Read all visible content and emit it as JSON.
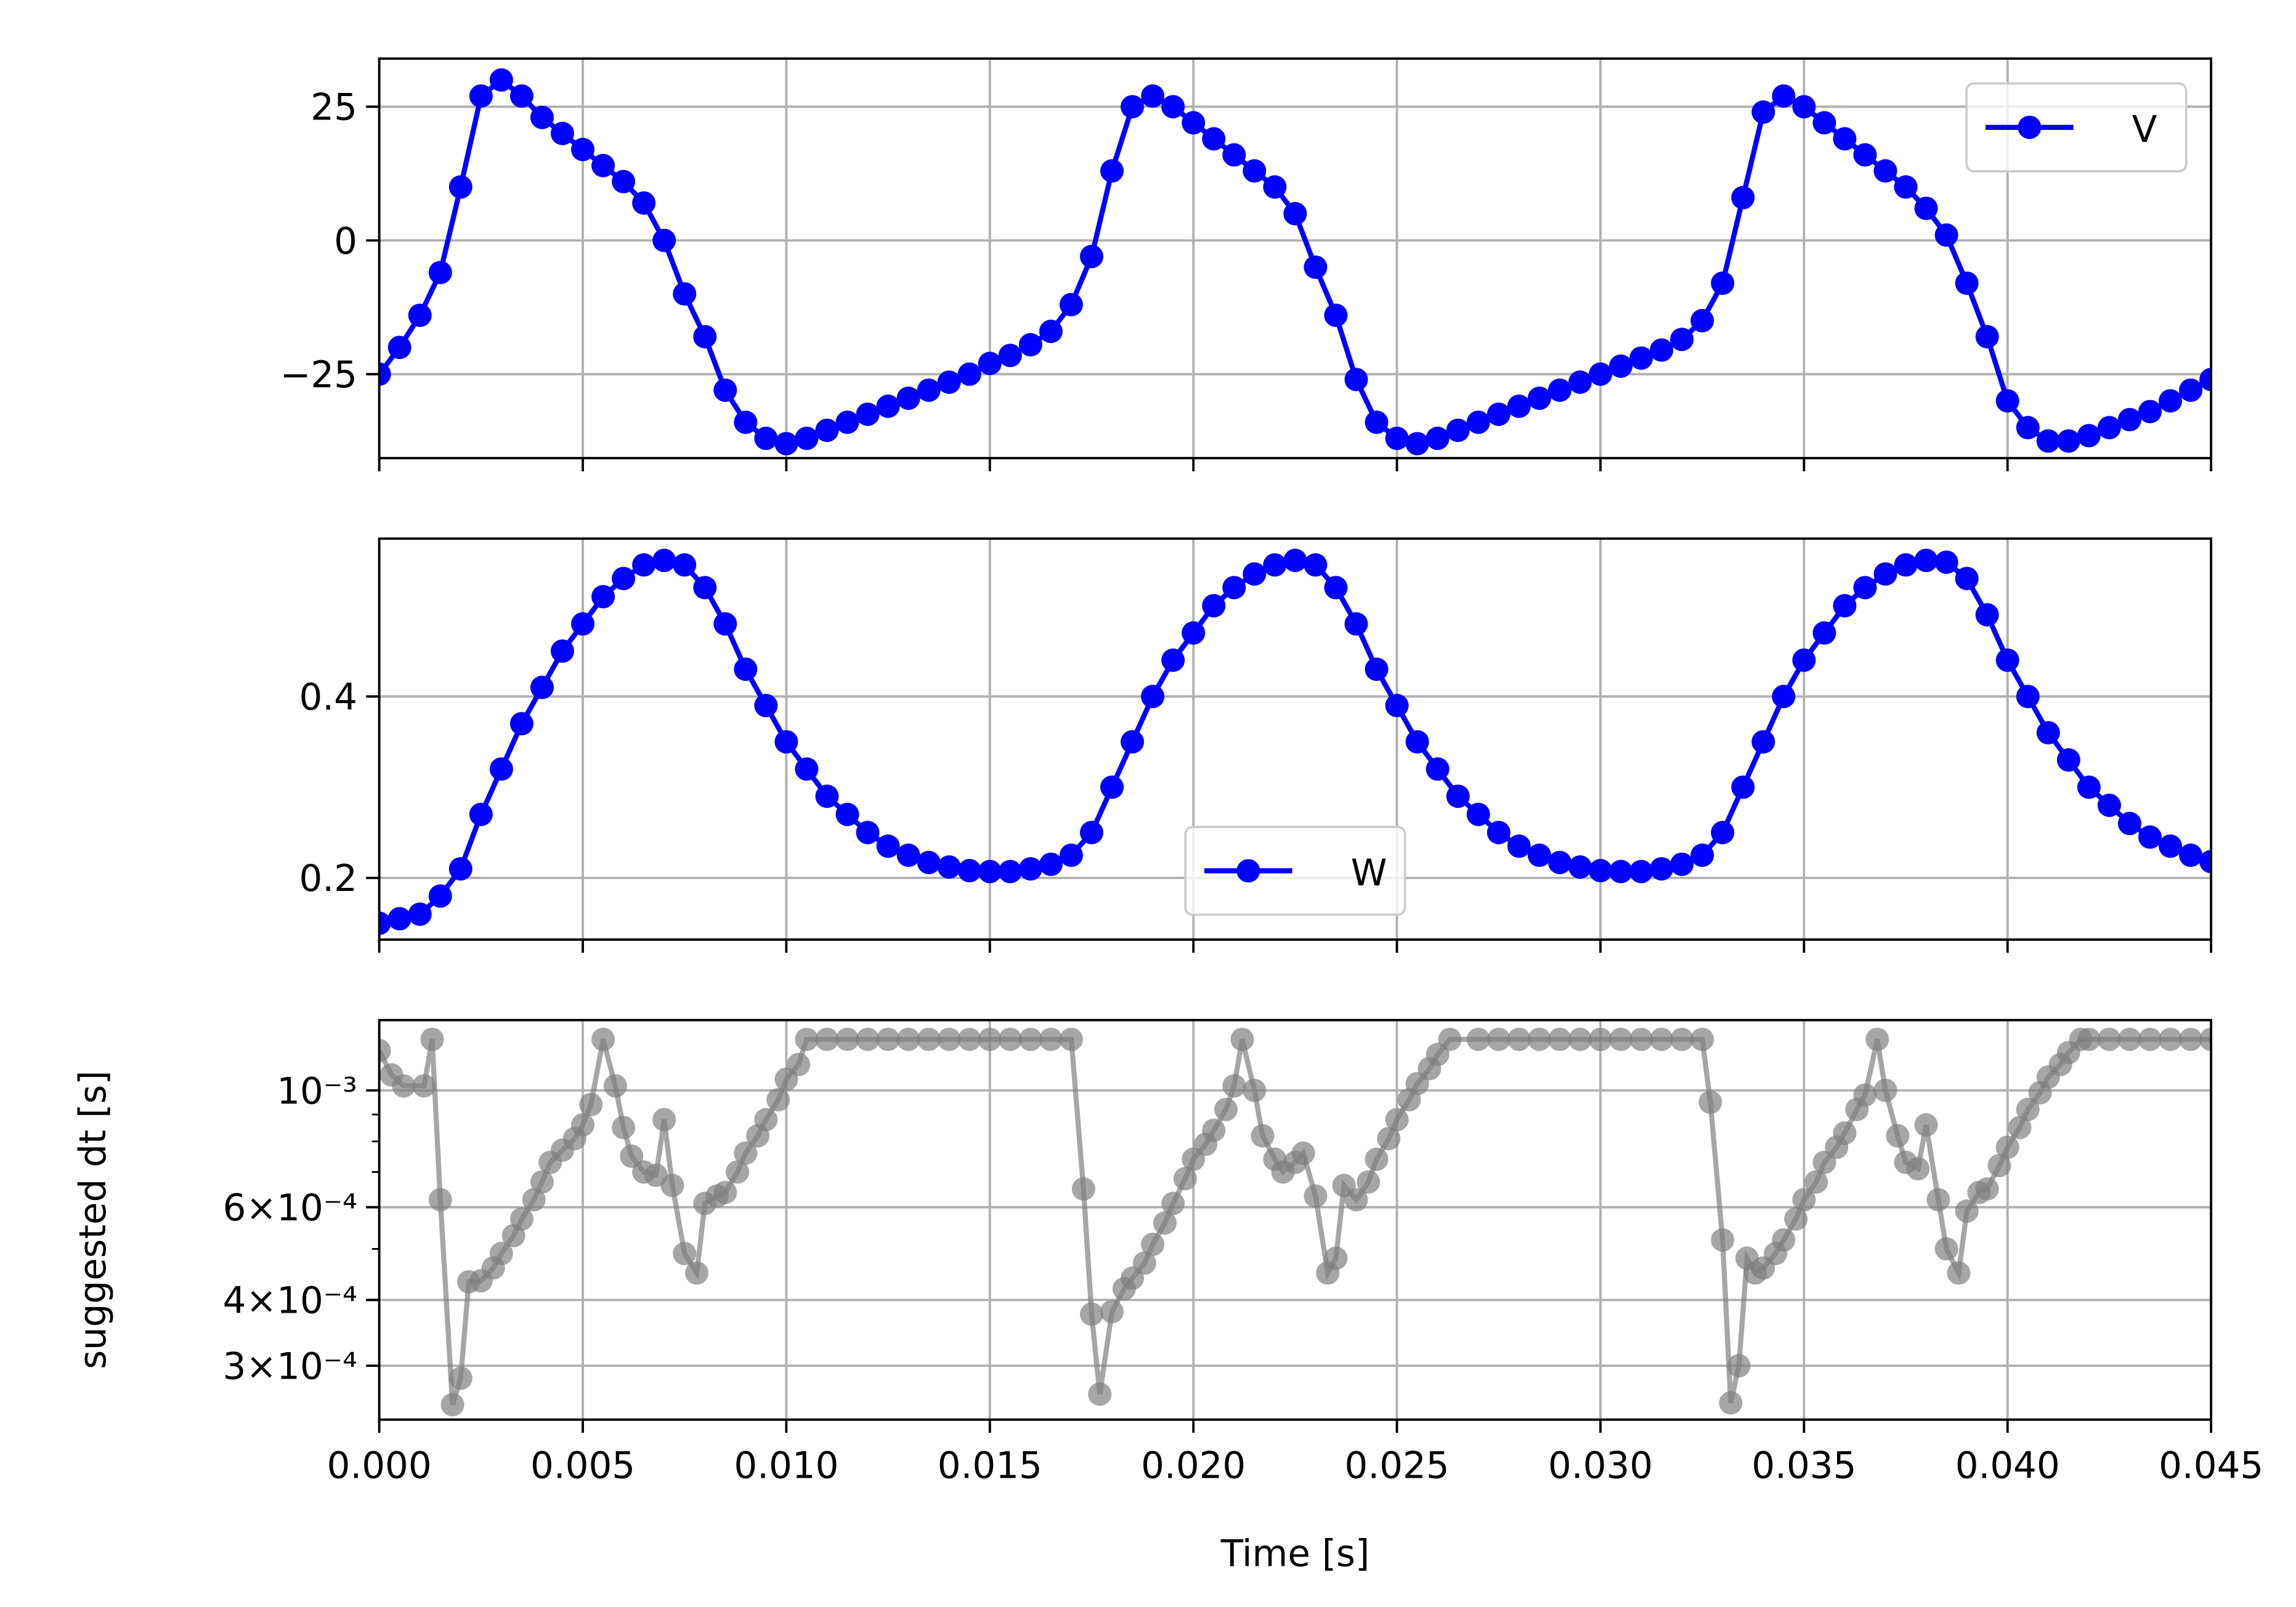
{
  "chart_data": [
    {
      "type": "line",
      "x": [
        0,
        0.0005,
        0.001,
        0.0015,
        0.002,
        0.0025,
        0.003,
        0.0035,
        0.004,
        0.0045,
        0.005,
        0.0055,
        0.006,
        0.0065,
        0.007,
        0.0075,
        0.008,
        0.0085,
        0.009,
        0.0095,
        0.01,
        0.0105,
        0.011,
        0.0115,
        0.012,
        0.0125,
        0.013,
        0.0135,
        0.014,
        0.0145,
        0.015,
        0.0155,
        0.016,
        0.0165,
        0.017,
        0.0175,
        0.018,
        0.0185,
        0.019,
        0.0195,
        0.02,
        0.0205,
        0.021,
        0.0215,
        0.022,
        0.0225,
        0.023,
        0.0235,
        0.024,
        0.0245,
        0.025,
        0.0255,
        0.026,
        0.0265,
        0.027,
        0.0275,
        0.028,
        0.0285,
        0.029,
        0.0295,
        0.03,
        0.0305,
        0.031,
        0.0315,
        0.032,
        0.0325,
        0.033,
        0.0335,
        0.034,
        0.0345,
        0.035,
        0.0355,
        0.036,
        0.0365,
        0.037,
        0.0375,
        0.038,
        0.0385,
        0.039,
        0.0395,
        0.04,
        0.0405,
        0.041,
        0.0415,
        0.042,
        0.0425,
        0.043,
        0.0435,
        0.044,
        0.0445,
        0.045
      ],
      "series": [
        {
          "name": "V",
          "color": "#0000ff",
          "values": [
            -25,
            -20,
            -14,
            -6,
            10,
            27,
            30,
            27,
            23,
            20,
            17,
            14,
            11,
            7,
            0,
            -10,
            -18,
            -28,
            -34,
            -37,
            -38,
            -37,
            -35.5,
            -34,
            -32.5,
            -31,
            -29.5,
            -28,
            -26.5,
            -25,
            -23,
            -21.5,
            -19.5,
            -17,
            -12,
            -3,
            13,
            25,
            27,
            25,
            22,
            19,
            16,
            13,
            10,
            5,
            -5,
            -14,
            -26,
            -34,
            -37,
            -38,
            -37,
            -35.5,
            -34,
            -32.5,
            -31,
            -29.5,
            -28,
            -26.5,
            -25,
            -23.5,
            -22,
            -20.5,
            -18.5,
            -15,
            -8,
            8,
            24,
            27,
            25,
            22,
            19,
            16,
            13,
            10,
            6,
            1,
            -8,
            -18,
            -30,
            -35,
            -37.5,
            -37.5,
            -36.5,
            -35,
            -33.5,
            -32,
            -30,
            -28,
            -26
          ]
        }
      ],
      "xlim": [
        0,
        0.045
      ],
      "xticks": [
        0,
        0.005,
        0.01,
        0.015,
        0.02,
        0.025,
        0.03,
        0.035,
        0.04,
        0.045
      ],
      "xtick_labels": false,
      "ylim": [
        -40.7,
        34
      ],
      "yticks": [
        {
          "value": -25,
          "label": "−25"
        },
        0,
        25
      ],
      "grid": true,
      "legend": "upper right"
    },
    {
      "type": "line",
      "x": [
        0,
        0.0005,
        0.001,
        0.0015,
        0.002,
        0.0025,
        0.003,
        0.0035,
        0.004,
        0.0045,
        0.005,
        0.0055,
        0.006,
        0.0065,
        0.007,
        0.0075,
        0.008,
        0.0085,
        0.009,
        0.0095,
        0.01,
        0.0105,
        0.011,
        0.0115,
        0.012,
        0.0125,
        0.013,
        0.0135,
        0.014,
        0.0145,
        0.015,
        0.0155,
        0.016,
        0.0165,
        0.017,
        0.0175,
        0.018,
        0.0185,
        0.019,
        0.0195,
        0.02,
        0.0205,
        0.021,
        0.0215,
        0.022,
        0.0225,
        0.023,
        0.0235,
        0.024,
        0.0245,
        0.025,
        0.0255,
        0.026,
        0.0265,
        0.027,
        0.0275,
        0.028,
        0.0285,
        0.029,
        0.0295,
        0.03,
        0.0305,
        0.031,
        0.0315,
        0.032,
        0.0325,
        0.033,
        0.0335,
        0.034,
        0.0345,
        0.035,
        0.0355,
        0.036,
        0.0365,
        0.037,
        0.0375,
        0.038,
        0.0385,
        0.039,
        0.0395,
        0.04,
        0.0405,
        0.041,
        0.0415,
        0.042,
        0.0425,
        0.043,
        0.0435,
        0.044,
        0.0445,
        0.045
      ],
      "series": [
        {
          "name": "W",
          "color": "#0000ff",
          "values": [
            0.15,
            0.155,
            0.16,
            0.18,
            0.21,
            0.27,
            0.32,
            0.37,
            0.41,
            0.45,
            0.48,
            0.51,
            0.53,
            0.545,
            0.55,
            0.545,
            0.52,
            0.48,
            0.43,
            0.39,
            0.35,
            0.32,
            0.29,
            0.27,
            0.25,
            0.235,
            0.225,
            0.217,
            0.212,
            0.208,
            0.207,
            0.207,
            0.21,
            0.215,
            0.225,
            0.25,
            0.3,
            0.35,
            0.4,
            0.44,
            0.47,
            0.5,
            0.52,
            0.535,
            0.545,
            0.55,
            0.545,
            0.52,
            0.48,
            0.43,
            0.39,
            0.35,
            0.32,
            0.29,
            0.27,
            0.25,
            0.235,
            0.225,
            0.217,
            0.212,
            0.208,
            0.207,
            0.207,
            0.21,
            0.215,
            0.225,
            0.25,
            0.3,
            0.35,
            0.4,
            0.44,
            0.47,
            0.5,
            0.52,
            0.535,
            0.545,
            0.55,
            0.548,
            0.53,
            0.49,
            0.44,
            0.4,
            0.36,
            0.33,
            0.3,
            0.28,
            0.26,
            0.245,
            0.235,
            0.225,
            0.218
          ]
        }
      ],
      "xlim": [
        0,
        0.045
      ],
      "xticks": [
        0,
        0.005,
        0.01,
        0.015,
        0.02,
        0.025,
        0.03,
        0.035,
        0.04,
        0.045
      ],
      "xtick_labels": false,
      "ylim": [
        0.132,
        0.574
      ],
      "yticks": [
        0.2,
        0.4
      ],
      "grid": true,
      "legend": "lower center"
    },
    {
      "type": "line",
      "x": [
        0,
        0.0003,
        0.0006,
        0.0011,
        0.0013,
        0.0015,
        0.0018,
        0.002,
        0.0022,
        0.0025,
        0.0028,
        0.003,
        0.0033,
        0.0035,
        0.0038,
        0.004,
        0.0042,
        0.0045,
        0.0048,
        0.005,
        0.0052,
        0.0055,
        0.0058,
        0.006,
        0.0062,
        0.0065,
        0.0068,
        0.007,
        0.0072,
        0.0075,
        0.0078,
        0.008,
        0.0083,
        0.0085,
        0.0088,
        0.009,
        0.0093,
        0.0095,
        0.0098,
        0.01,
        0.0103,
        0.0105,
        0.011,
        0.0115,
        0.012,
        0.0125,
        0.013,
        0.0135,
        0.014,
        0.0145,
        0.015,
        0.0155,
        0.016,
        0.0165,
        0.017,
        0.0173,
        0.0175,
        0.0177,
        0.018,
        0.0183,
        0.0185,
        0.0188,
        0.019,
        0.0193,
        0.0195,
        0.0198,
        0.02,
        0.0203,
        0.0205,
        0.0208,
        0.021,
        0.0212,
        0.0215,
        0.0217,
        0.022,
        0.0222,
        0.0225,
        0.0227,
        0.023,
        0.0233,
        0.0235,
        0.0237,
        0.024,
        0.0243,
        0.0245,
        0.0248,
        0.025,
        0.0253,
        0.0255,
        0.0258,
        0.026,
        0.0263,
        0.027,
        0.0275,
        0.028,
        0.0285,
        0.029,
        0.0295,
        0.03,
        0.0305,
        0.031,
        0.0315,
        0.032,
        0.0325,
        0.0327,
        0.033,
        0.0332,
        0.0334,
        0.0336,
        0.0338,
        0.034,
        0.0343,
        0.0345,
        0.0348,
        0.035,
        0.0353,
        0.0355,
        0.0358,
        0.036,
        0.0363,
        0.0365,
        0.0368,
        0.037,
        0.0373,
        0.0375,
        0.0378,
        0.038,
        0.0383,
        0.0385,
        0.0388,
        0.039,
        0.0393,
        0.0395,
        0.0398,
        0.04,
        0.0403,
        0.0405,
        0.0408,
        0.041,
        0.0413,
        0.0415,
        0.0418,
        0.042,
        0.0425,
        0.043,
        0.0435,
        0.044,
        0.0445,
        0.045
      ],
      "series": [
        {
          "color": "#808080",
          "alpha": 0.7,
          "values": [
            0.00119,
            0.00107,
            0.00102,
            0.00102,
            0.00125,
            0.00062,
            0.000253,
            0.000284,
            0.000433,
            0.000435,
            0.00046,
            0.00049,
            0.00053,
            0.00057,
            0.00062,
            0.00067,
            0.00073,
            0.00077,
            0.00081,
            0.00086,
            0.00094,
            0.00125,
            0.00102,
            0.00085,
            0.00075,
            0.0007,
            0.00069,
            0.00088,
            0.00066,
            0.00049,
            0.00045,
            0.00061,
            0.00063,
            0.00064,
            0.0007,
            0.00076,
            0.00082,
            0.00088,
            0.00096,
            0.00105,
            0.00112,
            0.00125,
            0.00125,
            0.00125,
            0.00125,
            0.00125,
            0.00125,
            0.00125,
            0.00125,
            0.00125,
            0.00125,
            0.00125,
            0.00125,
            0.00125,
            0.00125,
            0.00065,
            0.000376,
            0.000265,
            0.00038,
            0.00042,
            0.00044,
            0.00047,
            0.00051,
            0.00056,
            0.00061,
            0.00068,
            0.00074,
            0.00079,
            0.00084,
            0.00092,
            0.00102,
            0.00125,
            0.001,
            0.00082,
            0.00074,
            0.0007,
            0.00073,
            0.00076,
            0.00063,
            0.00045,
            0.00048,
            0.00066,
            0.00062,
            0.00067,
            0.00074,
            0.00081,
            0.00088,
            0.00096,
            0.00103,
            0.0011,
            0.00117,
            0.00125,
            0.00125,
            0.00125,
            0.00125,
            0.00125,
            0.00125,
            0.00125,
            0.00125,
            0.00125,
            0.00125,
            0.00125,
            0.00125,
            0.00125,
            0.00095,
            0.00052,
            0.000255,
            0.0003,
            0.00048,
            0.00045,
            0.00046,
            0.00049,
            0.00052,
            0.00057,
            0.00062,
            0.00067,
            0.00073,
            0.00078,
            0.00083,
            0.00092,
            0.00098,
            0.00125,
            0.001,
            0.00082,
            0.00073,
            0.00071,
            0.00086,
            0.00062,
            0.0005,
            0.00045,
            0.00059,
            0.00064,
            0.00065,
            0.00072,
            0.00078,
            0.00085,
            0.00092,
            0.00099,
            0.00106,
            0.00112,
            0.00118,
            0.00125,
            0.00125,
            0.00125,
            0.00125,
            0.00125,
            0.00125,
            0.00125,
            0.00125
          ]
        }
      ],
      "xlim": [
        0,
        0.045
      ],
      "xticks": [
        {
          "value": 0,
          "label": "0.000"
        },
        {
          "value": 0.005,
          "label": "0.005"
        },
        {
          "value": 0.01,
          "label": "0.010"
        },
        {
          "value": 0.015,
          "label": "0.015"
        },
        {
          "value": 0.02,
          "label": "0.020"
        },
        {
          "value": 0.025,
          "label": "0.025"
        },
        {
          "value": 0.03,
          "label": "0.030"
        },
        {
          "value": 0.035,
          "label": "0.035"
        },
        {
          "value": 0.04,
          "label": "0.040"
        },
        {
          "value": 0.045,
          "label": "0.045"
        }
      ],
      "xlabel": "Time [s]",
      "ylabel": "suggested dt [s]",
      "log_scale": true,
      "ylim": [
        0.000237,
        0.00136
      ],
      "yticks": [
        {
          "value": 0.0003,
          "label": "3×10⁻⁴"
        },
        {
          "value": 0.0004,
          "label": "4×10⁻⁴"
        },
        {
          "value": 0.0006,
          "label": "6×10⁻⁴"
        },
        {
          "value": 0.001,
          "label": "10⁻³"
        }
      ],
      "yminorticks": [
        0.0005,
        0.0007,
        0.0008,
        0.0009
      ],
      "grid": true
    }
  ]
}
